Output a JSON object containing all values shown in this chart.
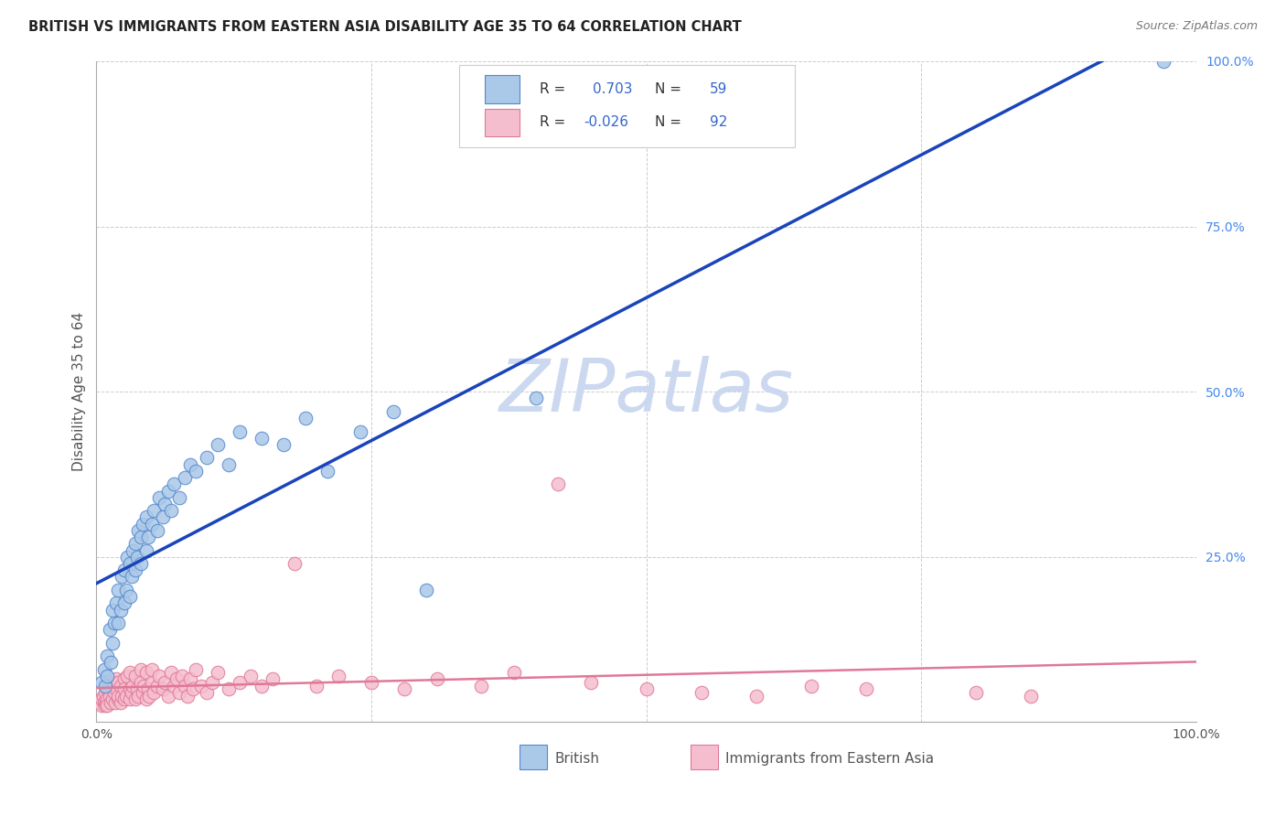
{
  "title": "BRITISH VS IMMIGRANTS FROM EASTERN ASIA DISABILITY AGE 35 TO 64 CORRELATION CHART",
  "source": "Source: ZipAtlas.com",
  "ylabel": "Disability Age 35 to 64",
  "british_r": 0.703,
  "british_n": 59,
  "immigrant_r": -0.026,
  "immigrant_n": 92,
  "british_color": "#aac8e8",
  "british_edge_color": "#5588cc",
  "immigrant_color": "#f5bece",
  "immigrant_edge_color": "#e07898",
  "trend_british_color": "#1a44bb",
  "trend_immigrant_color": "#e07898",
  "watermark_color": "#ccd8f0",
  "background_color": "#ffffff",
  "grid_color": "#cccccc",
  "r_n_color": "#3366cc",
  "legend_text_color": "#333333",
  "axis_label_color": "#555555",
  "right_tick_color": "#4488ee",
  "british_scatter_x": [
    0.005,
    0.007,
    0.008,
    0.01,
    0.01,
    0.012,
    0.013,
    0.015,
    0.015,
    0.016,
    0.018,
    0.02,
    0.02,
    0.022,
    0.023,
    0.025,
    0.025,
    0.027,
    0.028,
    0.03,
    0.03,
    0.032,
    0.033,
    0.035,
    0.035,
    0.037,
    0.038,
    0.04,
    0.04,
    0.042,
    0.045,
    0.045,
    0.047,
    0.05,
    0.052,
    0.055,
    0.057,
    0.06,
    0.062,
    0.065,
    0.068,
    0.07,
    0.075,
    0.08,
    0.085,
    0.09,
    0.1,
    0.11,
    0.12,
    0.13,
    0.15,
    0.17,
    0.19,
    0.21,
    0.24,
    0.27,
    0.3,
    0.4,
    0.97
  ],
  "british_scatter_y": [
    0.06,
    0.08,
    0.055,
    0.1,
    0.07,
    0.14,
    0.09,
    0.12,
    0.17,
    0.15,
    0.18,
    0.15,
    0.2,
    0.17,
    0.22,
    0.18,
    0.23,
    0.2,
    0.25,
    0.19,
    0.24,
    0.22,
    0.26,
    0.23,
    0.27,
    0.25,
    0.29,
    0.24,
    0.28,
    0.3,
    0.26,
    0.31,
    0.28,
    0.3,
    0.32,
    0.29,
    0.34,
    0.31,
    0.33,
    0.35,
    0.32,
    0.36,
    0.34,
    0.37,
    0.39,
    0.38,
    0.4,
    0.42,
    0.39,
    0.44,
    0.43,
    0.42,
    0.46,
    0.38,
    0.44,
    0.47,
    0.2,
    0.49,
    1.0
  ],
  "immigrant_scatter_x": [
    0.003,
    0.005,
    0.005,
    0.006,
    0.007,
    0.008,
    0.008,
    0.009,
    0.01,
    0.01,
    0.01,
    0.012,
    0.013,
    0.013,
    0.015,
    0.015,
    0.016,
    0.017,
    0.018,
    0.018,
    0.02,
    0.02,
    0.02,
    0.022,
    0.022,
    0.023,
    0.025,
    0.025,
    0.025,
    0.027,
    0.028,
    0.03,
    0.03,
    0.03,
    0.032,
    0.033,
    0.035,
    0.035,
    0.037,
    0.038,
    0.04,
    0.04,
    0.042,
    0.043,
    0.045,
    0.045,
    0.047,
    0.048,
    0.05,
    0.05,
    0.052,
    0.055,
    0.057,
    0.06,
    0.062,
    0.065,
    0.068,
    0.07,
    0.073,
    0.075,
    0.078,
    0.08,
    0.083,
    0.085,
    0.088,
    0.09,
    0.095,
    0.1,
    0.105,
    0.11,
    0.12,
    0.13,
    0.14,
    0.15,
    0.16,
    0.18,
    0.2,
    0.22,
    0.25,
    0.28,
    0.31,
    0.35,
    0.38,
    0.42,
    0.45,
    0.5,
    0.55,
    0.6,
    0.65,
    0.7,
    0.8,
    0.85
  ],
  "immigrant_scatter_y": [
    0.03,
    0.025,
    0.035,
    0.04,
    0.03,
    0.025,
    0.045,
    0.03,
    0.035,
    0.05,
    0.025,
    0.04,
    0.03,
    0.055,
    0.035,
    0.06,
    0.045,
    0.03,
    0.05,
    0.065,
    0.035,
    0.04,
    0.06,
    0.03,
    0.055,
    0.04,
    0.035,
    0.065,
    0.05,
    0.04,
    0.07,
    0.035,
    0.05,
    0.075,
    0.045,
    0.055,
    0.035,
    0.07,
    0.05,
    0.04,
    0.06,
    0.08,
    0.045,
    0.055,
    0.035,
    0.075,
    0.05,
    0.04,
    0.06,
    0.08,
    0.045,
    0.055,
    0.07,
    0.05,
    0.06,
    0.04,
    0.075,
    0.055,
    0.065,
    0.045,
    0.07,
    0.055,
    0.04,
    0.065,
    0.05,
    0.08,
    0.055,
    0.045,
    0.06,
    0.075,
    0.05,
    0.06,
    0.07,
    0.055,
    0.065,
    0.24,
    0.055,
    0.07,
    0.06,
    0.05,
    0.065,
    0.055,
    0.075,
    0.36,
    0.06,
    0.05,
    0.045,
    0.04,
    0.055,
    0.05,
    0.045,
    0.04
  ]
}
